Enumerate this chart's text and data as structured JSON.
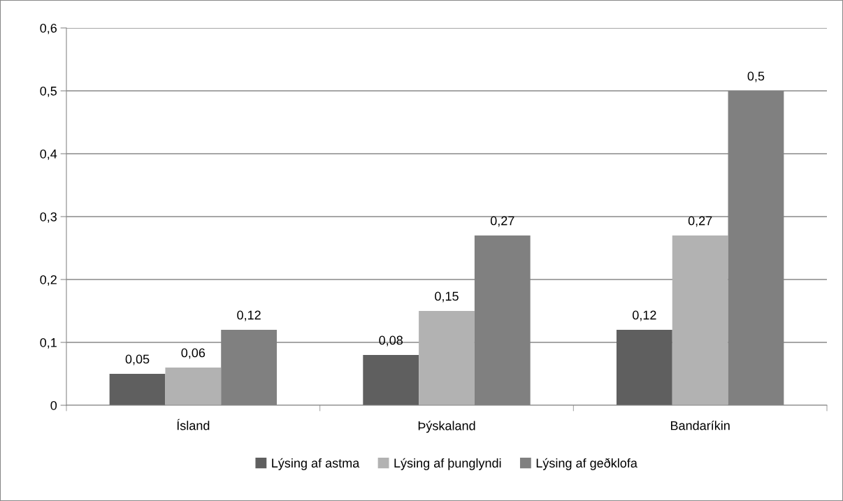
{
  "chart_data": {
    "type": "bar",
    "categories": [
      "Ísland",
      "Þýskaland",
      "Bandaríkin"
    ],
    "series": [
      {
        "name": "Lýsing af astma",
        "color": "#5f5f5f",
        "values": [
          0.05,
          0.08,
          0.12
        ],
        "value_labels": [
          "0,05",
          "0,08",
          "0,12"
        ]
      },
      {
        "name": "Lýsing af þunglyndi",
        "color": "#b2b2b2",
        "values": [
          0.06,
          0.15,
          0.27
        ],
        "value_labels": [
          "0,06",
          "0,15",
          "0,27"
        ]
      },
      {
        "name": "Lýsing af geðklofa",
        "color": "#808080",
        "values": [
          0.12,
          0.27,
          0.5
        ],
        "value_labels": [
          "0,12",
          "0,27",
          "0,5"
        ]
      }
    ],
    "ylim": [
      0,
      0.6
    ],
    "yticks": [
      0,
      {
        "value": 0.1,
        "label": "0,1"
      },
      {
        "value": 0.2,
        "label": "0,2"
      },
      {
        "value": 0.3,
        "label": "0,3"
      },
      {
        "value": 0.4,
        "label": "0,4"
      },
      {
        "value": 0.5,
        "label": "0,5"
      },
      {
        "value": 0.6,
        "label": "0,6"
      }
    ],
    "grid": "y",
    "legend": "bottom"
  }
}
